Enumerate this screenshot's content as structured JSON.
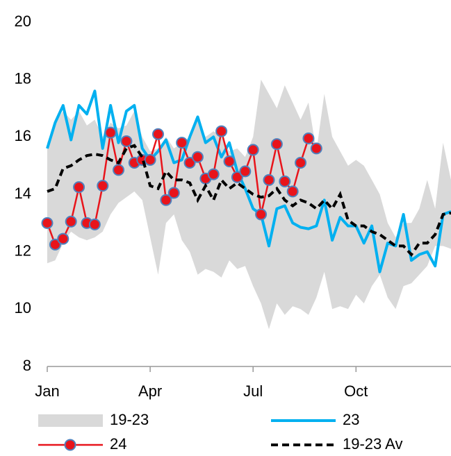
{
  "chart_data": {
    "type": "line",
    "x": [
      1,
      2,
      3,
      4,
      5,
      6,
      7,
      8,
      9,
      10,
      11,
      12,
      13,
      14,
      15,
      16,
      17,
      18,
      19,
      20,
      21,
      22,
      23,
      24,
      25,
      26,
      27,
      28,
      29,
      30,
      31,
      32,
      33,
      34,
      35,
      36,
      37,
      38,
      39,
      40,
      41,
      42,
      43,
      44,
      45,
      46,
      47,
      48,
      49,
      50,
      51,
      52
    ],
    "xlim": [
      1,
      52
    ],
    "xticks": [
      {
        "value": 1,
        "label": "Jan"
      },
      {
        "value": 14,
        "label": "Apr"
      },
      {
        "value": 27,
        "label": "Jul"
      },
      {
        "value": 40,
        "label": "Oct"
      }
    ],
    "ylim": [
      8,
      20
    ],
    "yticks": [
      8,
      10,
      12,
      14,
      16,
      18,
      20
    ],
    "grid": false,
    "legend": "bottom",
    "series": [
      {
        "name": "19-23",
        "color": "#d9d9d9",
        "kind": "band",
        "high": [
          15.8,
          16.5,
          16.9,
          16.6,
          16.9,
          16.4,
          16.6,
          16.0,
          16.5,
          16.3,
          16.4,
          16.9,
          16.0,
          15.5,
          15.6,
          16.0,
          15.6,
          15.8,
          16.0,
          16.6,
          16.0,
          16.2,
          16.0,
          15.5,
          15.6,
          15.3,
          16.0,
          18.0,
          17.5,
          17.0,
          17.8,
          17.2,
          16.6,
          17.2,
          15.5,
          17.5,
          16.0,
          15.5,
          15.0,
          15.2,
          15.0,
          14.5,
          14.0,
          13.0,
          12.5,
          13.0,
          13.0,
          13.5,
          14.5,
          13.5,
          15.8,
          14.5
        ],
        "low": [
          11.6,
          11.7,
          12.3,
          12.7,
          12.5,
          12.4,
          12.5,
          12.7,
          13.3,
          13.7,
          13.9,
          14.1,
          13.8,
          12.5,
          11.2,
          13.0,
          13.3,
          12.4,
          12.0,
          11.2,
          11.4,
          11.3,
          11.1,
          11.7,
          11.4,
          11.5,
          10.8,
          10.2,
          9.3,
          10.2,
          9.8,
          10.1,
          10.0,
          9.8,
          10.4,
          11.3,
          10.0,
          10.1,
          10.0,
          10.5,
          10.2,
          10.8,
          11.2,
          10.4,
          10.0,
          10.8,
          10.9,
          11.2,
          11.5,
          12.2,
          12.2,
          12.1
        ]
      },
      {
        "name": "23",
        "color": "#00b0f0",
        "kind": "line",
        "values": [
          15.6,
          16.5,
          17.1,
          15.9,
          17.1,
          16.8,
          17.6,
          15.6,
          17.1,
          15.8,
          16.9,
          17.1,
          15.6,
          15.2,
          15.5,
          15.9,
          15.1,
          15.2,
          16.0,
          16.7,
          15.8,
          16.0,
          15.3,
          15.8,
          14.8,
          14.2,
          13.5,
          13.3,
          12.2,
          13.5,
          13.6,
          13.0,
          12.85,
          12.8,
          12.9,
          13.8,
          12.4,
          13.2,
          12.9,
          12.9,
          12.3,
          12.9,
          11.3,
          12.3,
          12.2,
          13.3,
          11.7,
          11.9,
          12.0,
          11.5,
          13.3,
          13.4
        ]
      },
      {
        "name": "24",
        "color": "#e8141b",
        "kind": "marker-line",
        "values": [
          13.0,
          12.25,
          12.45,
          13.05,
          14.25,
          13.0,
          12.95,
          14.3,
          16.15,
          14.85,
          15.85,
          15.1,
          15.2,
          15.2,
          16.1,
          13.8,
          14.05,
          15.8,
          15.1,
          15.3,
          14.55,
          14.7,
          16.2,
          15.15,
          14.6,
          14.8,
          15.55,
          13.3,
          14.5,
          15.75,
          14.45,
          14.1,
          15.1,
          15.95,
          15.6,
          null,
          null,
          null,
          null,
          null,
          null,
          null,
          null,
          null,
          null,
          null,
          null,
          null,
          null,
          null,
          null,
          null
        ]
      },
      {
        "name": "19-23 Av",
        "color": "#000000",
        "kind": "dashed",
        "values": [
          14.1,
          14.2,
          14.9,
          15.0,
          15.2,
          15.35,
          15.4,
          15.35,
          15.2,
          15.1,
          15.6,
          15.7,
          15.3,
          14.3,
          14.2,
          14.8,
          14.5,
          14.5,
          14.4,
          13.8,
          14.3,
          13.8,
          14.5,
          14.2,
          14.4,
          14.2,
          14.0,
          13.9,
          13.95,
          14.2,
          13.8,
          13.6,
          13.8,
          13.7,
          13.5,
          13.8,
          13.5,
          14.0,
          13.1,
          12.9,
          12.9,
          12.7,
          12.6,
          12.4,
          12.2,
          12.2,
          11.9,
          12.3,
          12.3,
          12.6,
          13.3,
          13.35
        ]
      }
    ]
  }
}
